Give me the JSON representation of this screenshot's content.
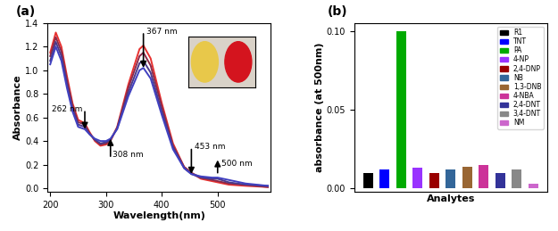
{
  "chart_data": [
    {
      "type": "line",
      "title": "(a)",
      "x_label": "Wavelength(nm)",
      "y_label": "Absorbance",
      "x": [
        200,
        210,
        220,
        230,
        240,
        250,
        262,
        270,
        280,
        290,
        300,
        308,
        320,
        340,
        360,
        367,
        380,
        400,
        420,
        440,
        453,
        470,
        490,
        500,
        520,
        550,
        590
      ],
      "series": [
        {
          "color": "#e8312f",
          "values": [
            1.15,
            1.32,
            1.2,
            0.95,
            0.72,
            0.58,
            0.55,
            0.48,
            0.4,
            0.36,
            0.37,
            0.4,
            0.52,
            0.88,
            1.18,
            1.21,
            1.1,
            0.72,
            0.38,
            0.18,
            0.13,
            0.08,
            0.06,
            0.05,
            0.03,
            0.02,
            0.01
          ]
        },
        {
          "color": "#8b2a4a",
          "values": [
            1.12,
            1.28,
            1.16,
            0.92,
            0.7,
            0.56,
            0.54,
            0.47,
            0.41,
            0.37,
            0.38,
            0.41,
            0.51,
            0.85,
            1.12,
            1.15,
            1.04,
            0.69,
            0.36,
            0.18,
            0.13,
            0.09,
            0.07,
            0.06,
            0.04,
            0.03,
            0.01
          ]
        },
        {
          "color": "#4b3a8a",
          "values": [
            1.08,
            1.24,
            1.12,
            0.88,
            0.67,
            0.54,
            0.52,
            0.46,
            0.41,
            0.38,
            0.39,
            0.41,
            0.51,
            0.81,
            1.06,
            1.08,
            0.98,
            0.65,
            0.35,
            0.17,
            0.12,
            0.09,
            0.08,
            0.08,
            0.05,
            0.03,
            0.02
          ]
        },
        {
          "color": "#4040c0",
          "values": [
            1.05,
            1.2,
            1.08,
            0.85,
            0.65,
            0.52,
            0.5,
            0.46,
            0.42,
            0.4,
            0.4,
            0.42,
            0.5,
            0.78,
            1.0,
            1.02,
            0.93,
            0.62,
            0.33,
            0.17,
            0.12,
            0.1,
            0.09,
            0.09,
            0.07,
            0.04,
            0.02
          ]
        }
      ],
      "annotations": [
        {
          "text": "262 nm",
          "x": 262
        },
        {
          "text": "308 nm",
          "x": 308
        },
        {
          "text": "367 nm",
          "x": 367
        },
        {
          "text": "453 nm",
          "x": 453
        },
        {
          "text": "500 nm",
          "x": 500
        }
      ],
      "xlim": [
        195,
        595
      ],
      "xticks": [
        200,
        300,
        400,
        500
      ],
      "ylim": [
        -0.03,
        1.4
      ],
      "yticks": [
        {
          "value": 0.0,
          "label": "0.0"
        },
        {
          "value": 0.2,
          "label": "0.2"
        },
        {
          "value": 0.4,
          "label": "0.4"
        },
        {
          "value": 0.6,
          "label": "0.6"
        },
        {
          "value": 0.8,
          "label": "0.8"
        },
        {
          "value": 1.0,
          "label": "1.0"
        },
        {
          "value": 1.2,
          "label": "1.2"
        },
        {
          "value": 1.4,
          "label": "1.4"
        }
      ]
    },
    {
      "type": "bar",
      "title": "(b)",
      "x_label": "Analytes",
      "y_label": "absorbance (at 500nm)",
      "categories": [
        "R1",
        "TNT",
        "PA",
        "4-NP",
        "2,4-DNP",
        "NB",
        "1,3-DNB",
        "4-NBA",
        "2,4-DNT",
        "3,4-DNT",
        "NM"
      ],
      "values": [
        0.01,
        0.012,
        0.1,
        0.013,
        0.01,
        0.012,
        0.014,
        0.015,
        0.01,
        0.012,
        0.003
      ],
      "colors": [
        "#000000",
        "#0000ff",
        "#00aa00",
        "#9933ff",
        "#990000",
        "#336699",
        "#996633",
        "#cc3399",
        "#333399",
        "#888888",
        "#cc66cc"
      ],
      "legend": "upper right",
      "tick_labels": "y",
      "ylim": [
        -0.002,
        0.105
      ],
      "yticks": [
        {
          "value": 0.0,
          "label": "0.00"
        },
        {
          "value": 0.05,
          "label": "0.05"
        },
        {
          "value": 0.1,
          "label": "0.10"
        }
      ]
    }
  ]
}
